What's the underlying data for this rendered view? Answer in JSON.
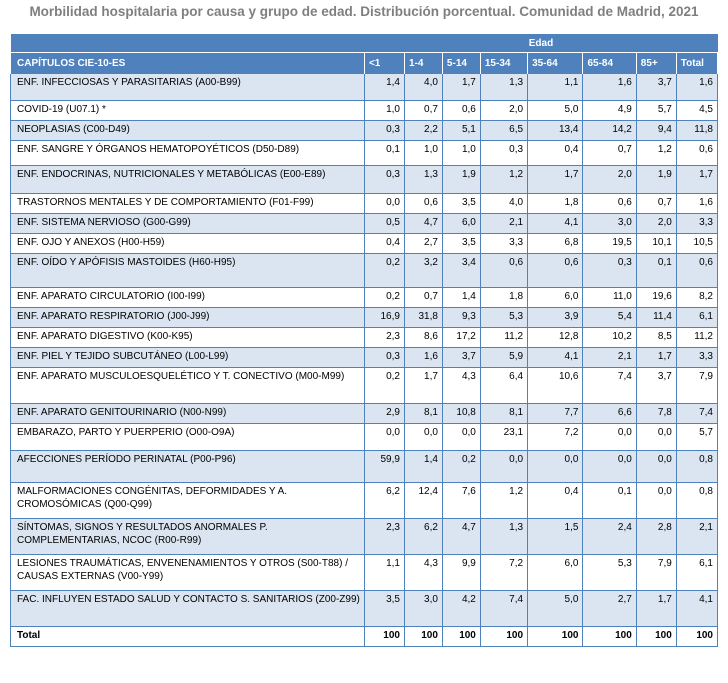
{
  "title": "Morbilidad hospitalaria por causa y grupo de edad. Distribución porcentual. Comunidad de Madrid, 2021",
  "table": {
    "group_header": "Edad",
    "first_column_header": "CAPÍTULOS CIE-10-ES",
    "age_columns": [
      "<1",
      "1-4",
      "5-14",
      "15-34",
      "35-64",
      "65-84",
      "85+",
      "Total"
    ],
    "rows": [
      {
        "label": "ENF. INFECCIOSAS Y PARASITARIAS (A00-B99)",
        "values": [
          "1,4",
          "4,0",
          "1,7",
          "1,3",
          "1,1",
          "1,6",
          "3,7",
          "1,6"
        ],
        "height": 27
      },
      {
        "label": "COVID-19 (U07.1) *",
        "values": [
          "1,0",
          "0,7",
          "0,6",
          "2,0",
          "5,0",
          "4,9",
          "5,7",
          "4,5"
        ],
        "height": 20
      },
      {
        "label": "NEOPLASIAS (C00-D49)",
        "values": [
          "0,3",
          "2,2",
          "5,1",
          "6,5",
          "13,4",
          "14,2",
          "9,4",
          "11,8"
        ],
        "height": 20
      },
      {
        "label": "ENF. SANGRE Y ÓRGANOS HEMATOPOYÉTICOS (D50-D89)",
        "values": [
          "0,1",
          "1,0",
          "1,0",
          "0,3",
          "0,4",
          "0,7",
          "1,2",
          "0,6"
        ],
        "height": 25
      },
      {
        "label": "ENF. ENDOCRINAS, NUTRICIONALES Y METABÓLICAS (E00-E89)",
        "values": [
          "0,3",
          "1,3",
          "1,9",
          "1,2",
          "1,7",
          "2,0",
          "1,9",
          "1,7"
        ],
        "height": 28
      },
      {
        "label": "TRASTORNOS MENTALES Y DE COMPORTAMIENTO (F01-F99)",
        "values": [
          "0,0",
          "0,6",
          "3,5",
          "4,0",
          "1,8",
          "0,6",
          "0,7",
          "1,6"
        ],
        "height": 20
      },
      {
        "label": "ENF.  SISTEMA NERVIOSO (G00-G99)",
        "values": [
          "0,5",
          "4,7",
          "6,0",
          "2,1",
          "4,1",
          "3,0",
          "2,0",
          "3,3"
        ],
        "height": 20
      },
      {
        "label": "ENF.  OJO Y  ANEXOS (H00-H59)",
        "values": [
          "0,4",
          "2,7",
          "3,5",
          "3,3",
          "6,8",
          "19,5",
          "10,1",
          "10,5"
        ],
        "height": 20
      },
      {
        "label": "ENF. OÍDO Y  APÓFISIS MASTOIDES (H60-H95)",
        "values": [
          "0,2",
          "3,2",
          "3,4",
          "0,6",
          "0,6",
          "0,3",
          "0,1",
          "0,6"
        ],
        "height": 34
      },
      {
        "label": "ENF. APARATO CIRCULATORIO (I00-I99)",
        "values": [
          "0,2",
          "0,7",
          "1,4",
          "1,8",
          "6,0",
          "11,0",
          "19,6",
          "8,2"
        ],
        "height": 20
      },
      {
        "label": "ENF. APARATO RESPIRATORIO (J00-J99)",
        "values": [
          "16,9",
          "31,8",
          "9,3",
          "5,3",
          "3,9",
          "5,4",
          "11,4",
          "6,1"
        ],
        "height": 20
      },
      {
        "label": "ENF. APARATO DIGESTIVO (K00-K95)",
        "values": [
          "2,3",
          "8,6",
          "17,2",
          "11,2",
          "12,8",
          "10,2",
          "8,5",
          "11,2"
        ],
        "height": 20
      },
      {
        "label": "ENF. PIEL Y TEJIDO SUBCUTÁNEO (L00-L99)",
        "values": [
          "0,3",
          "1,6",
          "3,7",
          "5,9",
          "4,1",
          "2,1",
          "1,7",
          "3,3"
        ],
        "height": 20
      },
      {
        "label": "ENF. APARATO MUSCULOESQUELÉTICO Y  T. CONECTIVO (M00-M99)",
        "values": [
          "0,2",
          "1,7",
          "4,3",
          "6,4",
          "10,6",
          "7,4",
          "3,7",
          "7,9"
        ],
        "height": 36
      },
      {
        "label": "ENF. APARATO GENITOURINARIO (N00-N99)",
        "values": [
          "2,9",
          "8,1",
          "10,8",
          "8,1",
          "7,7",
          "6,6",
          "7,8",
          "7,4"
        ],
        "height": 20
      },
      {
        "label": "EMBARAZO, PARTO Y PUERPERIO (O00-O9A)",
        "values": [
          "0,0",
          "0,0",
          "0,0",
          "23,1",
          "7,2",
          "0,0",
          "0,0",
          "5,7"
        ],
        "height": 27
      },
      {
        "label": "AFECCIONES PERÍODO PERINATAL (P00-P96)",
        "values": [
          "59,9",
          "1,4",
          "0,2",
          "0,0",
          "0,0",
          "0,0",
          "0,0",
          "0,8"
        ],
        "height": 32
      },
      {
        "label": "MALFORMACIONES CONGÉNITAS, DEFORMIDADES Y A. CROMOSÓMICAS (Q00-Q99)",
        "values": [
          "6,2",
          "12,4",
          "7,6",
          "1,2",
          "0,4",
          "0,1",
          "0,0",
          "0,8"
        ],
        "height": 36
      },
      {
        "label": "SÍNTOMAS, SIGNOS Y RESULTADOS ANORMALES  P. COMPLEMENTARIAS, NCOC (R00-R99)",
        "values": [
          "2,3",
          "6,2",
          "4,7",
          "1,3",
          "1,5",
          "2,4",
          "2,8",
          "2,1"
        ],
        "height": 36
      },
      {
        "label": "LESIONES TRAUMÁTICAS, ENVENENAMIENTOS Y OTROS (S00-T88) / CAUSAS EXTERNAS (V00-Y99)",
        "values": [
          "1,1",
          "4,3",
          "9,9",
          "7,2",
          "6,0",
          "5,3",
          "7,9",
          "6,1"
        ],
        "height": 36
      },
      {
        "label": "FAC. INFLUYEN ESTADO SALUD Y CONTACTO S. SANITARIOS (Z00-Z99)",
        "values": [
          "3,5",
          "3,0",
          "4,2",
          "7,4",
          "5,0",
          "2,7",
          "1,7",
          "4,1"
        ],
        "height": 36
      },
      {
        "label": "Total",
        "values": [
          "100",
          "100",
          "100",
          "100",
          "100",
          "100",
          "100",
          "100"
        ],
        "height": 20,
        "total": true
      }
    ]
  },
  "colors": {
    "header_bg": "#4f81bd",
    "band_bg": "#dbe5f1",
    "title_color": "#7f7f7f"
  }
}
